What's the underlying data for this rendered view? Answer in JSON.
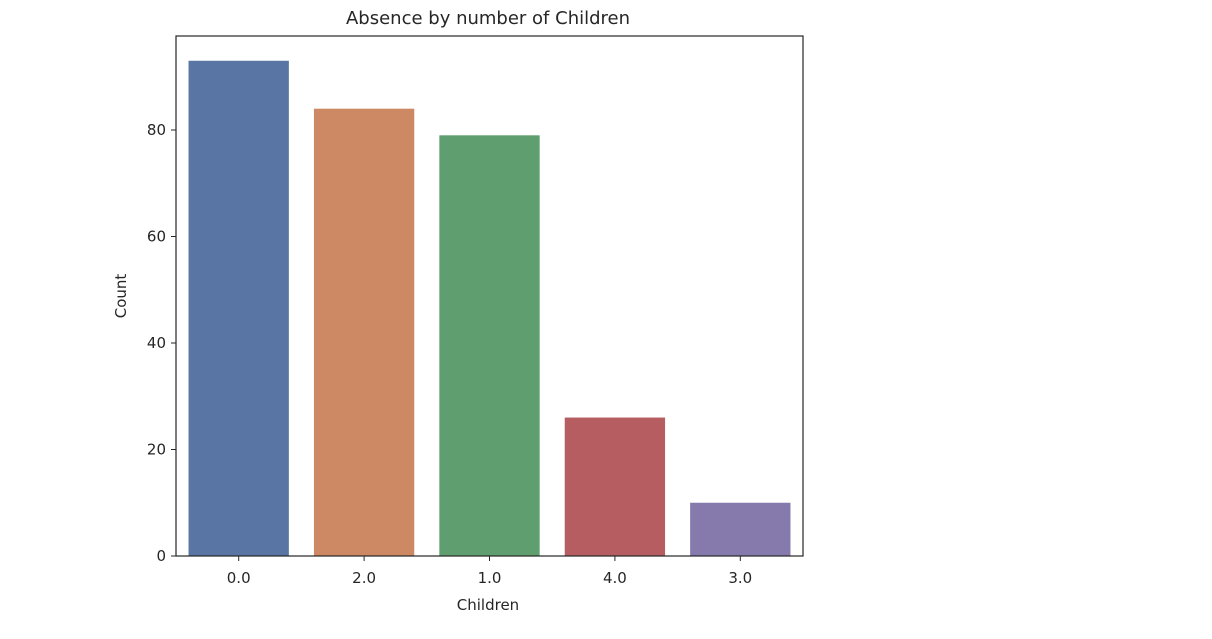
{
  "chart_data": {
    "type": "bar",
    "title": "Absence by number of Children",
    "xlabel": "Children",
    "ylabel": "Count",
    "categories": [
      "0.0",
      "2.0",
      "1.0",
      "4.0",
      "3.0"
    ],
    "values": [
      93,
      84,
      79,
      26,
      10
    ],
    "colors": [
      "#5875a4",
      "#cc8963",
      "#5f9e6e",
      "#b55d60",
      "#857aab"
    ],
    "ylim": [
      0,
      97.65
    ],
    "yticks": [
      0,
      20,
      40,
      60,
      80
    ],
    "grid": false,
    "legend": "none"
  }
}
